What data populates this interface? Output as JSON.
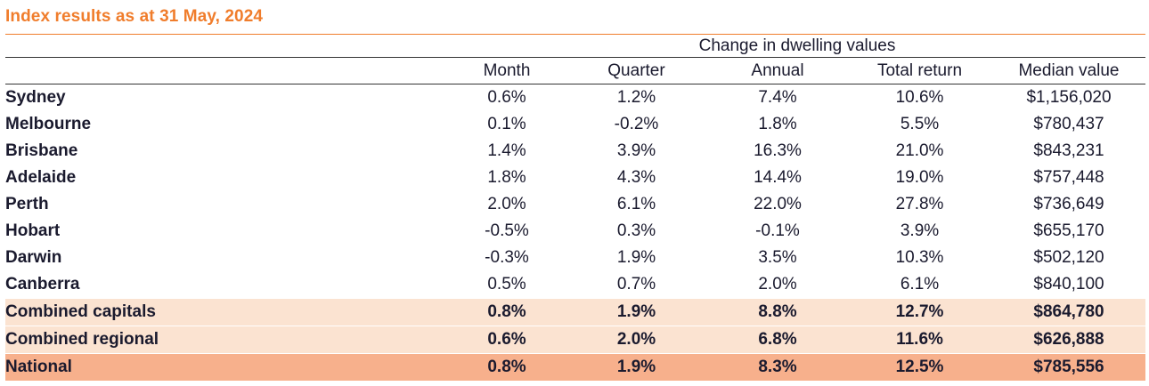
{
  "title": "Index results as at 31 May, 2024",
  "chart_data": {
    "type": "table",
    "group_header": "Change in dwelling values",
    "columns": [
      "Month",
      "Quarter",
      "Annual",
      "Total return",
      "Median value"
    ],
    "rows": [
      {
        "name": "Sydney",
        "values": [
          "0.6%",
          "1.2%",
          "7.4%",
          "10.6%",
          "$1,156,020"
        ],
        "style": "normal"
      },
      {
        "name": "Melbourne",
        "values": [
          "0.1%",
          "-0.2%",
          "1.8%",
          "5.5%",
          "$780,437"
        ],
        "style": "normal"
      },
      {
        "name": "Brisbane",
        "values": [
          "1.4%",
          "3.9%",
          "16.3%",
          "21.0%",
          "$843,231"
        ],
        "style": "normal"
      },
      {
        "name": "Adelaide",
        "values": [
          "1.8%",
          "4.3%",
          "14.4%",
          "19.0%",
          "$757,448"
        ],
        "style": "normal"
      },
      {
        "name": "Perth",
        "values": [
          "2.0%",
          "6.1%",
          "22.0%",
          "27.8%",
          "$736,649"
        ],
        "style": "normal"
      },
      {
        "name": "Hobart",
        "values": [
          "-0.5%",
          "0.3%",
          "-0.1%",
          "3.9%",
          "$655,170"
        ],
        "style": "normal"
      },
      {
        "name": "Darwin",
        "values": [
          "-0.3%",
          "1.9%",
          "3.5%",
          "10.3%",
          "$502,120"
        ],
        "style": "normal"
      },
      {
        "name": "Canberra",
        "values": [
          "0.5%",
          "0.7%",
          "2.0%",
          "6.1%",
          "$840,100"
        ],
        "style": "normal"
      },
      {
        "name": "Combined capitals",
        "values": [
          "0.8%",
          "1.9%",
          "8.8%",
          "12.7%",
          "$864,780"
        ],
        "style": "combined"
      },
      {
        "name": "Combined regional",
        "values": [
          "0.6%",
          "2.0%",
          "6.8%",
          "11.6%",
          "$626,888"
        ],
        "style": "combined"
      },
      {
        "name": "National",
        "values": [
          "0.8%",
          "1.9%",
          "8.3%",
          "12.5%",
          "$785,556"
        ],
        "style": "national"
      }
    ]
  },
  "colors": {
    "accent": "#f07d2c",
    "combined_fill": "#fbe3d1",
    "national_fill": "#f7b08c",
    "text": "#1a1a2e"
  }
}
